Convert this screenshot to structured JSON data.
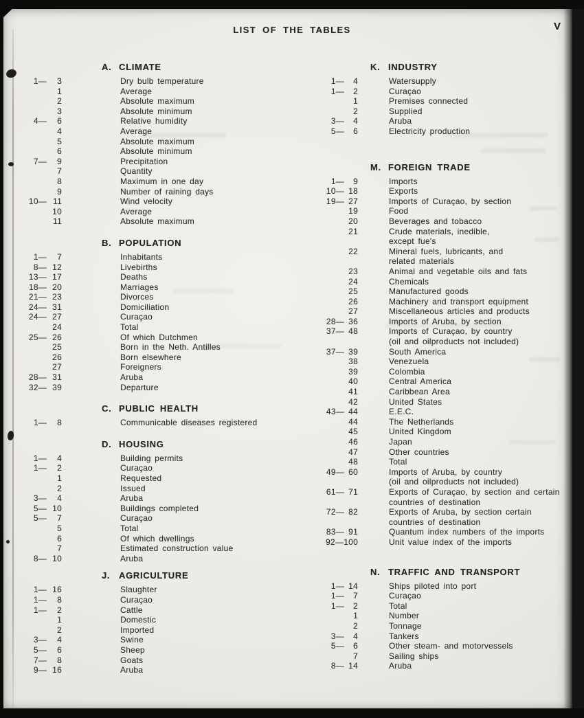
{
  "document": {
    "header_title": "LIST OF THE TABLES",
    "page_number": "V"
  },
  "colors": {
    "paper": "#ebeae6",
    "ink": "#34322e",
    "scan_border": "#0b0b0a"
  },
  "columns": [
    {
      "sections": [
        {
          "letter": "A.",
          "title": "CLIMATE",
          "items": [
            {
              "n1": "1—",
              "n2": "3",
              "label": "Dry bulb temperature"
            },
            {
              "n1": "",
              "n2": "1",
              "label": "Average"
            },
            {
              "n1": "",
              "n2": "2",
              "label": "Absolute maximum"
            },
            {
              "n1": "",
              "n2": "3",
              "label": "Absolute minimum"
            },
            {
              "n1": "4—",
              "n2": "6",
              "label": "Relative humidity"
            },
            {
              "n1": "",
              "n2": "4",
              "label": "Average"
            },
            {
              "n1": "",
              "n2": "5",
              "label": "Absolute maximum"
            },
            {
              "n1": "",
              "n2": "6",
              "label": "Absolute minimum"
            },
            {
              "n1": "7—",
              "n2": "9",
              "label": "Precipitation"
            },
            {
              "n1": "",
              "n2": "7",
              "label": "Quantity"
            },
            {
              "n1": "",
              "n2": "8",
              "label": "Maximum in one day"
            },
            {
              "n1": "",
              "n2": "9",
              "label": "Number of raining days"
            },
            {
              "n1": "10—",
              "n2": "11",
              "label": "Wind velocity"
            },
            {
              "n1": "",
              "n2": "10",
              "label": "Average"
            },
            {
              "n1": "",
              "n2": "11",
              "label": "Absolute maximum"
            }
          ]
        },
        {
          "letter": "B.",
          "title": "POPULATION",
          "items": [
            {
              "n1": "1—",
              "n2": "7",
              "label": "Inhabitants"
            },
            {
              "n1": "8—",
              "n2": "12",
              "label": "Livebirths"
            },
            {
              "n1": "13—",
              "n2": "17",
              "label": "Deaths"
            },
            {
              "n1": "18—",
              "n2": "20",
              "label": "Marriages"
            },
            {
              "n1": "21—",
              "n2": "23",
              "label": "Divorces"
            },
            {
              "n1": "24—",
              "n2": "31",
              "label": "Domiciliation"
            },
            {
              "n1": "24—",
              "n2": "27",
              "label": "Curaçao"
            },
            {
              "n1": "",
              "n2": "24",
              "label": "Total"
            },
            {
              "n1": "25—",
              "n2": "26",
              "label": "Of which Dutchmen"
            },
            {
              "n1": "",
              "n2": "25",
              "label": "Born in the Neth. Antilles"
            },
            {
              "n1": "",
              "n2": "26",
              "label": "Born elsewhere"
            },
            {
              "n1": "",
              "n2": "27",
              "label": "Foreigners"
            },
            {
              "n1": "28—",
              "n2": "31",
              "label": "Aruba"
            },
            {
              "n1": "32—",
              "n2": "39",
              "label": "Departure"
            }
          ]
        },
        {
          "letter": "C.",
          "title": "PUBLIC HEALTH",
          "items": [
            {
              "n1": "1—",
              "n2": "8",
              "label": "Communicable diseases registered"
            }
          ]
        },
        {
          "letter": "D.",
          "title": "HOUSING",
          "items": [
            {
              "n1": "1—",
              "n2": "4",
              "label": "Building permits"
            },
            {
              "n1": "1—",
              "n2": "2",
              "label": "Curaçao"
            },
            {
              "n1": "",
              "n2": "1",
              "label": "Requested"
            },
            {
              "n1": "",
              "n2": "2",
              "label": "Issued"
            },
            {
              "n1": "3—",
              "n2": "4",
              "label": "Aruba"
            },
            {
              "n1": "5—",
              "n2": "10",
              "label": "Buildings completed"
            },
            {
              "n1": "5—",
              "n2": "7",
              "label": "Curaçao"
            },
            {
              "n1": "",
              "n2": "5",
              "label": "Total"
            },
            {
              "n1": "",
              "n2": "6",
              "label": "Of which dwellings"
            },
            {
              "n1": "",
              "n2": "7",
              "label": "Estimated construction value"
            },
            {
              "n1": "8—",
              "n2": "10",
              "label": "Aruba"
            }
          ]
        },
        {
          "letter": "J.",
          "title": "AGRICULTURE",
          "items": [
            {
              "n1": "1—",
              "n2": "16",
              "label": "Slaughter"
            },
            {
              "n1": "1—",
              "n2": "8",
              "label": "Curaçao"
            },
            {
              "n1": "1—",
              "n2": "2",
              "label": "Cattle"
            },
            {
              "n1": "",
              "n2": "1",
              "label": "Domestic"
            },
            {
              "n1": "",
              "n2": "2",
              "label": "Imported"
            },
            {
              "n1": "3—",
              "n2": "4",
              "label": "Swine"
            },
            {
              "n1": "5—",
              "n2": "6",
              "label": "Sheep"
            },
            {
              "n1": "7—",
              "n2": "8",
              "label": "Goats"
            },
            {
              "n1": "9—",
              "n2": "16",
              "label": "Aruba"
            }
          ]
        }
      ]
    },
    {
      "sections": [
        {
          "letter": "K.",
          "title": "INDUSTRY",
          "items": [
            {
              "n1": "1—",
              "n2": "4",
              "label": "Watersupply"
            },
            {
              "n1": "1—",
              "n2": "2",
              "label": "Curaçao"
            },
            {
              "n1": "",
              "n2": "1",
              "label": "Premises connected"
            },
            {
              "n1": "",
              "n2": "2",
              "label": "Supplied"
            },
            {
              "n1": "3—",
              "n2": "4",
              "label": "Aruba"
            },
            {
              "n1": "5—",
              "n2": "6",
              "label": "Electricity production"
            }
          ]
        },
        {
          "letter": "M.",
          "title": "FOREIGN TRADE",
          "items": [
            {
              "n1": "1—",
              "n2": "9",
              "label": "Imports"
            },
            {
              "n1": "10—",
              "n2": "18",
              "label": "Exports"
            },
            {
              "n1": "19—",
              "n2": "27",
              "label": "Imports of Curaçao, by section"
            },
            {
              "n1": "",
              "n2": "19",
              "label": "Food"
            },
            {
              "n1": "",
              "n2": "20",
              "label": "Beverages and tobacco"
            },
            {
              "n1": "",
              "n2": "21",
              "label": "Crude materials, inedible,\nexcept fue's"
            },
            {
              "n1": "",
              "n2": "22",
              "label": "Mineral fuels, lubricants, and\nrelated materials"
            },
            {
              "n1": "",
              "n2": "23",
              "label": "Animal and vegetable oils and fats"
            },
            {
              "n1": "",
              "n2": "24",
              "label": "Chemicals"
            },
            {
              "n1": "",
              "n2": "25",
              "label": "Manufactured goods"
            },
            {
              "n1": "",
              "n2": "26",
              "label": "Machinery and transport equipment"
            },
            {
              "n1": "",
              "n2": "27",
              "label": "Miscellaneous articles and products"
            },
            {
              "n1": "28—",
              "n2": "36",
              "label": "Imports of Aruba, by section"
            },
            {
              "n1": "37—",
              "n2": "48",
              "label": "Imports of Curaçao, by country\n(oil and oilproducts not included)"
            },
            {
              "n1": "37—",
              "n2": "39",
              "label": "South America"
            },
            {
              "n1": "",
              "n2": "38",
              "label": "Venezuela"
            },
            {
              "n1": "",
              "n2": "39",
              "label": "Colombia"
            },
            {
              "n1": "",
              "n2": "40",
              "label": "Central America"
            },
            {
              "n1": "",
              "n2": "41",
              "label": "Caribbean Area"
            },
            {
              "n1": "",
              "n2": "42",
              "label": "United States"
            },
            {
              "n1": "43—",
              "n2": "44",
              "label": "E.E.C."
            },
            {
              "n1": "",
              "n2": "44",
              "label": "The Netherlands"
            },
            {
              "n1": "",
              "n2": "45",
              "label": "United Kingdom"
            },
            {
              "n1": "",
              "n2": "46",
              "label": "Japan"
            },
            {
              "n1": "",
              "n2": "47",
              "label": "Other countries"
            },
            {
              "n1": "",
              "n2": "48",
              "label": "Total"
            },
            {
              "n1": "49—",
              "n2": "60",
              "label": "Imports of Aruba, by country\n(oil and oilproducts not included)"
            },
            {
              "n1": "61—",
              "n2": "71",
              "label": "Exports of Curaçao, by section and certain\ncountries of destination"
            },
            {
              "n1": "72—",
              "n2": "82",
              "label": "Exports of Aruba, by section certain\ncountries of destination"
            },
            {
              "n1": "83—",
              "n2": "91",
              "label": "Quantum index numbers of the imports"
            },
            {
              "n1": "92—",
              "n2": "100",
              "label": "Unit value index of the imports"
            }
          ]
        },
        {
          "letter": "N.",
          "title": "TRAFFIC AND TRANSPORT",
          "items": [
            {
              "n1": "1—",
              "n2": "14",
              "label": "Ships piloted into port"
            },
            {
              "n1": "1—",
              "n2": "7",
              "label": "Curaçao"
            },
            {
              "n1": "1—",
              "n2": "2",
              "label": "Total"
            },
            {
              "n1": "",
              "n2": "1",
              "label": "Number"
            },
            {
              "n1": "",
              "n2": "2",
              "label": "Tonnage"
            },
            {
              "n1": "3—",
              "n2": "4",
              "label": "Tankers"
            },
            {
              "n1": "5—",
              "n2": "6",
              "label": "Other steam- and motorvessels"
            },
            {
              "n1": "",
              "n2": "7",
              "label": "Sailing ships"
            },
            {
              "n1": "8—",
              "n2": "14",
              "label": "Aruba"
            }
          ]
        }
      ]
    }
  ]
}
